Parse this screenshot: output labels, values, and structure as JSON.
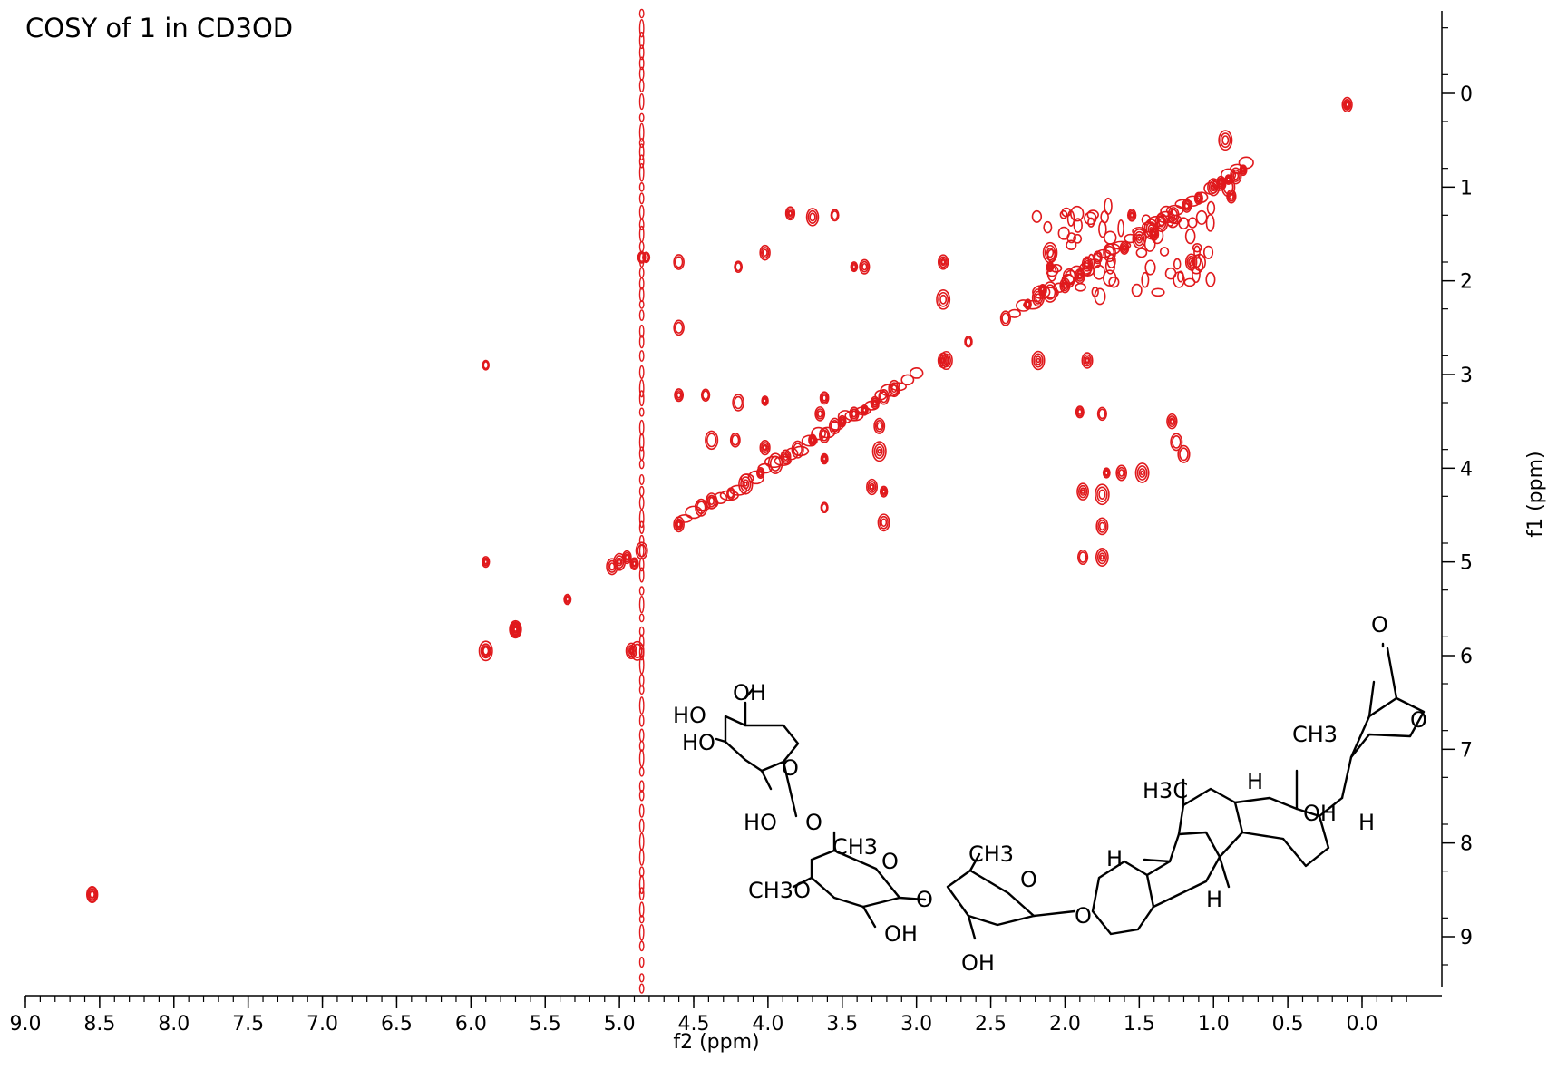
{
  "chart_data": {
    "type": "scatter",
    "subtype": "2D NMR COSY contour plot",
    "title": "COSY of 1 in CD3OD",
    "xlabel": "f2 (ppm)",
    "ylabel": "f1 (ppm)",
    "xlim": [
      9.0,
      -0.35
    ],
    "ylim": [
      -0.75,
      9.6
    ],
    "x_ticks": [
      "9.0",
      "8.5",
      "8.0",
      "7.5",
      "7.0",
      "6.5",
      "6.0",
      "5.5",
      "5.0",
      "4.5",
      "4.0",
      "3.5",
      "3.0",
      "2.5",
      "2.0",
      "1.5",
      "1.0",
      "0.5",
      "0.0"
    ],
    "y_ticks": [
      "0",
      "1",
      "2",
      "3",
      "4",
      "5",
      "6",
      "7",
      "8",
      "9"
    ],
    "contour_color": "#e0191c",
    "grid": false,
    "solvent_line_ppm": 4.85,
    "series": [
      {
        "role": "diagonal",
        "points": [
          [
            8.55,
            8.55
          ],
          [
            5.9,
            5.95
          ],
          [
            5.7,
            5.72
          ],
          [
            5.35,
            5.4
          ],
          [
            5.05,
            5.05
          ],
          [
            4.95,
            4.95
          ],
          [
            4.85,
            4.88
          ],
          [
            4.6,
            4.6
          ],
          [
            4.45,
            4.42
          ],
          [
            4.38,
            4.35
          ],
          [
            4.25,
            4.27
          ],
          [
            4.15,
            4.17
          ],
          [
            4.05,
            4.05
          ],
          [
            3.95,
            3.95
          ],
          [
            3.88,
            3.88
          ],
          [
            3.8,
            3.8
          ],
          [
            3.7,
            3.7
          ],
          [
            3.62,
            3.65
          ],
          [
            3.55,
            3.55
          ],
          [
            3.5,
            3.5
          ],
          [
            3.42,
            3.42
          ],
          [
            3.35,
            3.38
          ],
          [
            3.28,
            3.3
          ],
          [
            3.22,
            3.24
          ],
          [
            3.15,
            3.15
          ],
          [
            2.8,
            2.85
          ],
          [
            2.65,
            2.65
          ],
          [
            2.4,
            2.4
          ],
          [
            2.25,
            2.25
          ],
          [
            2.18,
            2.18
          ],
          [
            2.1,
            2.12
          ],
          [
            2.0,
            2.05
          ],
          [
            1.9,
            1.95
          ],
          [
            1.85,
            1.82
          ],
          [
            1.78,
            1.75
          ],
          [
            1.7,
            1.7
          ],
          [
            1.6,
            1.65
          ],
          [
            1.5,
            1.55
          ],
          [
            1.42,
            1.45
          ],
          [
            1.35,
            1.38
          ],
          [
            1.27,
            1.3
          ],
          [
            1.18,
            1.2
          ],
          [
            1.1,
            1.12
          ],
          [
            1.0,
            1.0
          ],
          [
            0.95,
            0.95
          ],
          [
            0.9,
            0.92
          ],
          [
            0.85,
            0.88
          ],
          [
            0.8,
            0.82
          ],
          [
            0.1,
            0.12
          ]
        ]
      },
      {
        "role": "cross-peaks",
        "points": [
          [
            8.55,
            8.55
          ],
          [
            5.9,
            5.0
          ],
          [
            5.9,
            5.95
          ],
          [
            5.9,
            2.9
          ],
          [
            5.7,
            5.72
          ],
          [
            5.0,
            5.0
          ],
          [
            4.9,
            5.02
          ],
          [
            4.85,
            1.75
          ],
          [
            4.82,
            1.75
          ],
          [
            4.92,
            5.95
          ],
          [
            4.88,
            5.95
          ],
          [
            4.6,
            1.8
          ],
          [
            4.6,
            3.22
          ],
          [
            4.6,
            4.6
          ],
          [
            4.42,
            3.22
          ],
          [
            4.38,
            3.7
          ],
          [
            4.2,
            1.85
          ],
          [
            4.2,
            3.3
          ],
          [
            4.22,
            3.7
          ],
          [
            4.02,
            1.7
          ],
          [
            4.02,
            3.28
          ],
          [
            4.02,
            3.78
          ],
          [
            3.85,
            1.28
          ],
          [
            3.7,
            1.32
          ],
          [
            3.62,
            3.25
          ],
          [
            3.62,
            3.9
          ],
          [
            3.62,
            4.42
          ],
          [
            3.55,
            1.3
          ],
          [
            3.42,
            1.85
          ],
          [
            3.35,
            1.85
          ],
          [
            3.3,
            4.2
          ],
          [
            3.25,
            3.55
          ],
          [
            3.22,
            4.25
          ],
          [
            3.22,
            4.58
          ],
          [
            3.25,
            3.82
          ],
          [
            2.82,
            1.8
          ],
          [
            2.82,
            2.2
          ],
          [
            2.82,
            2.85
          ],
          [
            2.18,
            2.85
          ],
          [
            1.85,
            2.85
          ],
          [
            1.88,
            4.25
          ],
          [
            1.88,
            4.95
          ],
          [
            1.75,
            4.28
          ],
          [
            1.75,
            4.62
          ],
          [
            1.75,
            4.95
          ],
          [
            1.62,
            4.05
          ],
          [
            1.48,
            4.05
          ],
          [
            1.72,
            4.05
          ],
          [
            1.28,
            3.5
          ],
          [
            1.25,
            3.72
          ],
          [
            1.2,
            3.85
          ],
          [
            1.9,
            3.4
          ],
          [
            1.75,
            3.42
          ],
          [
            2.1,
            1.7
          ],
          [
            2.1,
            1.85
          ],
          [
            2.15,
            2.1
          ],
          [
            1.55,
            1.3
          ],
          [
            1.4,
            1.5
          ],
          [
            1.15,
            1.8
          ],
          [
            0.9,
            1.0
          ],
          [
            0.88,
            1.1
          ],
          [
            0.92,
            0.5
          ],
          [
            0.1,
            0.12
          ],
          [
            4.6,
            2.5
          ],
          [
            3.65,
            3.42
          ]
        ]
      }
    ]
  },
  "structure": {
    "name": "chemical-structure",
    "labels": {
      "oh_top": "OH",
      "ho_1": "HO",
      "ho_2": "HO",
      "ho_3": "HO",
      "o_ring1": "O",
      "o_link1": "O",
      "ch3_1": "CH3",
      "o_ring2": "O",
      "ch3o": "CH3O",
      "o_link2": "O",
      "oh_2": "OH",
      "ch3_2": "CH3",
      "o_ring3": "O",
      "o_link3": "O",
      "oh_3": "OH",
      "h_1": "H",
      "h3c": "H3C",
      "h_2": "H",
      "h_3": "H",
      "ch3_3": "CH3",
      "oh_4": "OH",
      "h_4": "H",
      "o_carbonyl": "O",
      "o_lactone": "O"
    }
  }
}
